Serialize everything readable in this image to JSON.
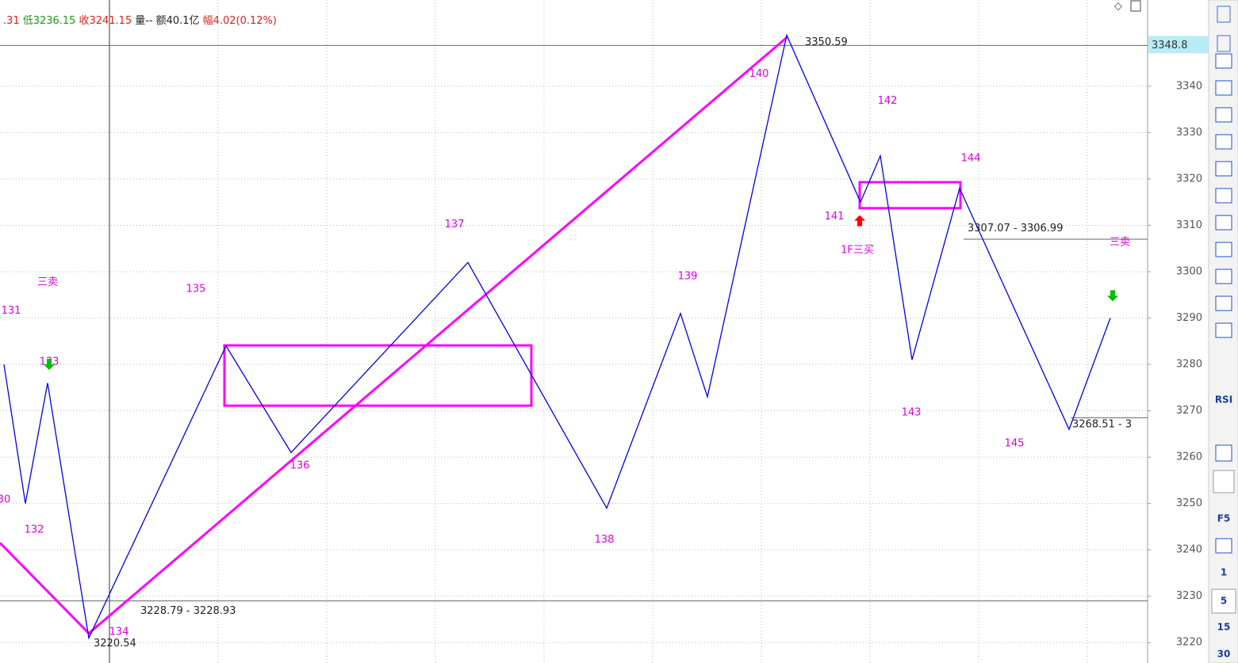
{
  "header": {
    "segments": [
      {
        "text": ".31",
        "color": "#e02020"
      },
      {
        "text": "低3236.15",
        "color": "#1a9a1a"
      },
      {
        "text": "收3241.15",
        "color": "#e02020"
      },
      {
        "text": "量--",
        "color": "#222222"
      },
      {
        "text": "额40.1亿",
        "color": "#222222"
      },
      {
        "text": "幅4.02(0.12%)",
        "color": "#e02020"
      }
    ]
  },
  "toolbar": {
    "labels": [
      "RSI",
      "F5",
      "1",
      "5",
      "15",
      "30"
    ]
  },
  "chart_data": {
    "type": "line",
    "xlim": [
      0,
      1447
    ],
    "ylim": [
      3215.6,
      3358.6
    ],
    "yticks": [
      3220,
      3230,
      3240,
      3250,
      3260,
      3270,
      3280,
      3290,
      3300,
      3310,
      3320,
      3330,
      3340
    ],
    "grid": true,
    "price_label": 3348.8,
    "crosshair_x": 138,
    "zigzag": {
      "color": "#0000ee",
      "x": [
        5,
        32,
        60,
        112,
        285,
        367,
        590,
        765,
        858,
        892,
        992,
        1085,
        1110,
        1150,
        1210,
        1348,
        1400
      ],
      "values": [
        3280,
        3250,
        3276,
        3221,
        3284,
        3261,
        3302,
        3249,
        3291,
        3273,
        3351,
        3315,
        3325,
        3281,
        3318,
        3266,
        3290
      ]
    },
    "trend": {
      "color": "#ff00ff",
      "x": [
        0,
        112,
        992
      ],
      "values": [
        3241.5,
        3222,
        3350.5
      ]
    },
    "boxes": [
      {
        "x": [
          283,
          670
        ],
        "values": [
          3284.1,
          3271.1
        ]
      },
      {
        "x": [
          1084,
          1211
        ],
        "values": [
          3319.3,
          3313.7
        ]
      }
    ],
    "levels": [
      {
        "value": 3348.8,
        "x": [
          0,
          1447
        ]
      },
      {
        "value": 3229,
        "x": [
          0,
          1447
        ]
      },
      {
        "value": 3307,
        "x": [
          1215,
          1447
        ]
      },
      {
        "value": 3268.5,
        "x": [
          1350,
          1447
        ]
      }
    ],
    "level_labels": [
      {
        "text": "3350.59",
        "x": 1015,
        "y": 3349.5
      },
      {
        "text": "3220.54",
        "x": 118,
        "y": 3219.8
      },
      {
        "text": "3228.79 - 3228.93",
        "x": 177,
        "y": 3226.8
      },
      {
        "text": "3307.07 - 3306.99",
        "x": 1220,
        "y": 3309.3
      },
      {
        "text": "3268.51 - 3",
        "x": 1352,
        "y": 3267
      }
    ],
    "point_labels": [
      {
        "text": "131",
        "x": 14,
        "y": 3291.5
      },
      {
        "text": "30",
        "x": 5,
        "y": 3250.8
      },
      {
        "text": "132",
        "x": 43,
        "y": 3244.3
      },
      {
        "text": "133",
        "x": 62,
        "y": 3280.5
      },
      {
        "text": "134",
        "x": 150,
        "y": 3222.3
      },
      {
        "text": "135",
        "x": 247,
        "y": 3296.2
      },
      {
        "text": "136",
        "x": 378,
        "y": 3258.1
      },
      {
        "text": "137",
        "x": 573,
        "y": 3310.2
      },
      {
        "text": "138",
        "x": 762,
        "y": 3242.2
      },
      {
        "text": "139",
        "x": 867,
        "y": 3299
      },
      {
        "text": "140",
        "x": 957,
        "y": 3342.6
      },
      {
        "text": "141",
        "x": 1052,
        "y": 3311.9
      },
      {
        "text": "142",
        "x": 1119,
        "y": 3336.8
      },
      {
        "text": "143",
        "x": 1149,
        "y": 3269.6
      },
      {
        "text": "144",
        "x": 1224,
        "y": 3324.4
      },
      {
        "text": "145",
        "x": 1279,
        "y": 3262.9
      },
      {
        "text": "三卖",
        "x": 60,
        "y": 3297.7
      },
      {
        "text": "1F三买",
        "x": 1081,
        "y": 3304.6
      },
      {
        "text": "三卖",
        "x": 1412,
        "y": 3306.3
      }
    ],
    "signals": [
      {
        "direction": "down",
        "color": "#00c000",
        "x": 62,
        "y": 3280
      },
      {
        "direction": "down",
        "color": "#00c000",
        "x": 1403,
        "y": 3294.8
      },
      {
        "direction": "up",
        "color": "#ff0000",
        "x": 1084,
        "y": 3311
      }
    ]
  }
}
